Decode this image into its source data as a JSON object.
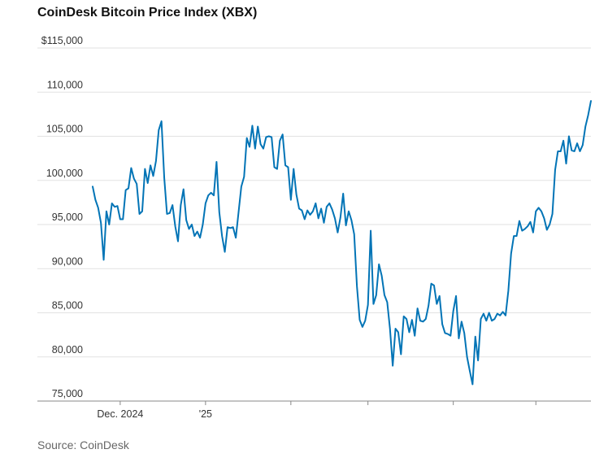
{
  "title": "CoinDesk Bitcoin Price Index (XBX)",
  "source": "Source: CoinDesk",
  "colors": {
    "line": "#0274b6",
    "grid": "#e2e2e2",
    "axis": "#888888"
  },
  "chart_data": {
    "type": "line",
    "title": "CoinDesk Bitcoin Price Index (XBX)",
    "xlabel": "",
    "ylabel": "",
    "ylim": [
      75000,
      115000
    ],
    "y_ticks": [
      {
        "value": 115000,
        "label": "$115,000"
      },
      {
        "value": 110000,
        "label": "110,000"
      },
      {
        "value": 105000,
        "label": "105,000"
      },
      {
        "value": 100000,
        "label": "100,000"
      },
      {
        "value": 95000,
        "label": "95,000"
      },
      {
        "value": 90000,
        "label": "90,000"
      },
      {
        "value": 85000,
        "label": "85,000"
      },
      {
        "value": 80000,
        "label": "80,000"
      },
      {
        "value": 75000,
        "label": "75,000"
      }
    ],
    "x_ticks": [
      {
        "index": 10,
        "label": "Dec. 2024"
      },
      {
        "index": 41,
        "label": "'25"
      },
      {
        "index": 72,
        "label": ""
      },
      {
        "index": 100,
        "label": ""
      },
      {
        "index": 131,
        "label": ""
      },
      {
        "index": 161,
        "label": ""
      }
    ],
    "grid": true,
    "legend": "none",
    "series": [
      {
        "values": [
          99300,
          97800,
          96900,
          95200,
          91000,
          96500,
          95000,
          97400,
          97000,
          97100,
          95600,
          95600,
          98900,
          99100,
          101400,
          100200,
          99600,
          96200,
          96500,
          101300,
          99700,
          101700,
          100500,
          102200,
          105700,
          106700,
          100300,
          96200,
          96300,
          97200,
          94800,
          93100,
          97200,
          99000,
          95500,
          94500,
          95000,
          93700,
          94200,
          93500,
          95000,
          97400,
          98300,
          98600,
          98300,
          102100,
          96400,
          93700,
          91900,
          94700,
          94600,
          94700,
          93500,
          96400,
          99300,
          100400,
          104800,
          103800,
          106200,
          103600,
          106100,
          104100,
          103600,
          104900,
          105000,
          104900,
          101500,
          101300,
          104500,
          105200,
          101700,
          101500,
          97800,
          101300,
          98400,
          96800,
          96600,
          95600,
          96600,
          96100,
          96500,
          97400,
          95700,
          96800,
          95200,
          97000,
          97400,
          96700,
          95700,
          94100,
          95800,
          98500,
          94900,
          96500,
          95500,
          93900,
          88000,
          84200,
          83400,
          84100,
          85900,
          94300,
          86000,
          87000,
          90500,
          89200,
          87000,
          86200,
          83200,
          79000,
          83200,
          82800,
          80300,
          84600,
          84300,
          82800,
          84200,
          82400,
          85500,
          84100,
          84000,
          84300,
          85800,
          88300,
          88100,
          86000,
          86900,
          83700,
          82700,
          82600,
          82400,
          85200,
          86900,
          82100,
          84000,
          82700,
          80000,
          78400,
          76900,
          82300,
          79600,
          84300,
          84900,
          84100,
          85000,
          84100,
          84300,
          84900,
          84700,
          85100,
          84700,
          87500,
          91700,
          93700,
          93700,
          95400,
          94300,
          94500,
          94800,
          95300,
          94100,
          96500,
          96900,
          96500,
          95700,
          94400,
          95000,
          96200,
          101200,
          103300,
          103300,
          104500,
          101900,
          105000,
          103400,
          103300,
          104200,
          103300,
          104000,
          106100,
          107400,
          109000
        ]
      }
    ]
  }
}
